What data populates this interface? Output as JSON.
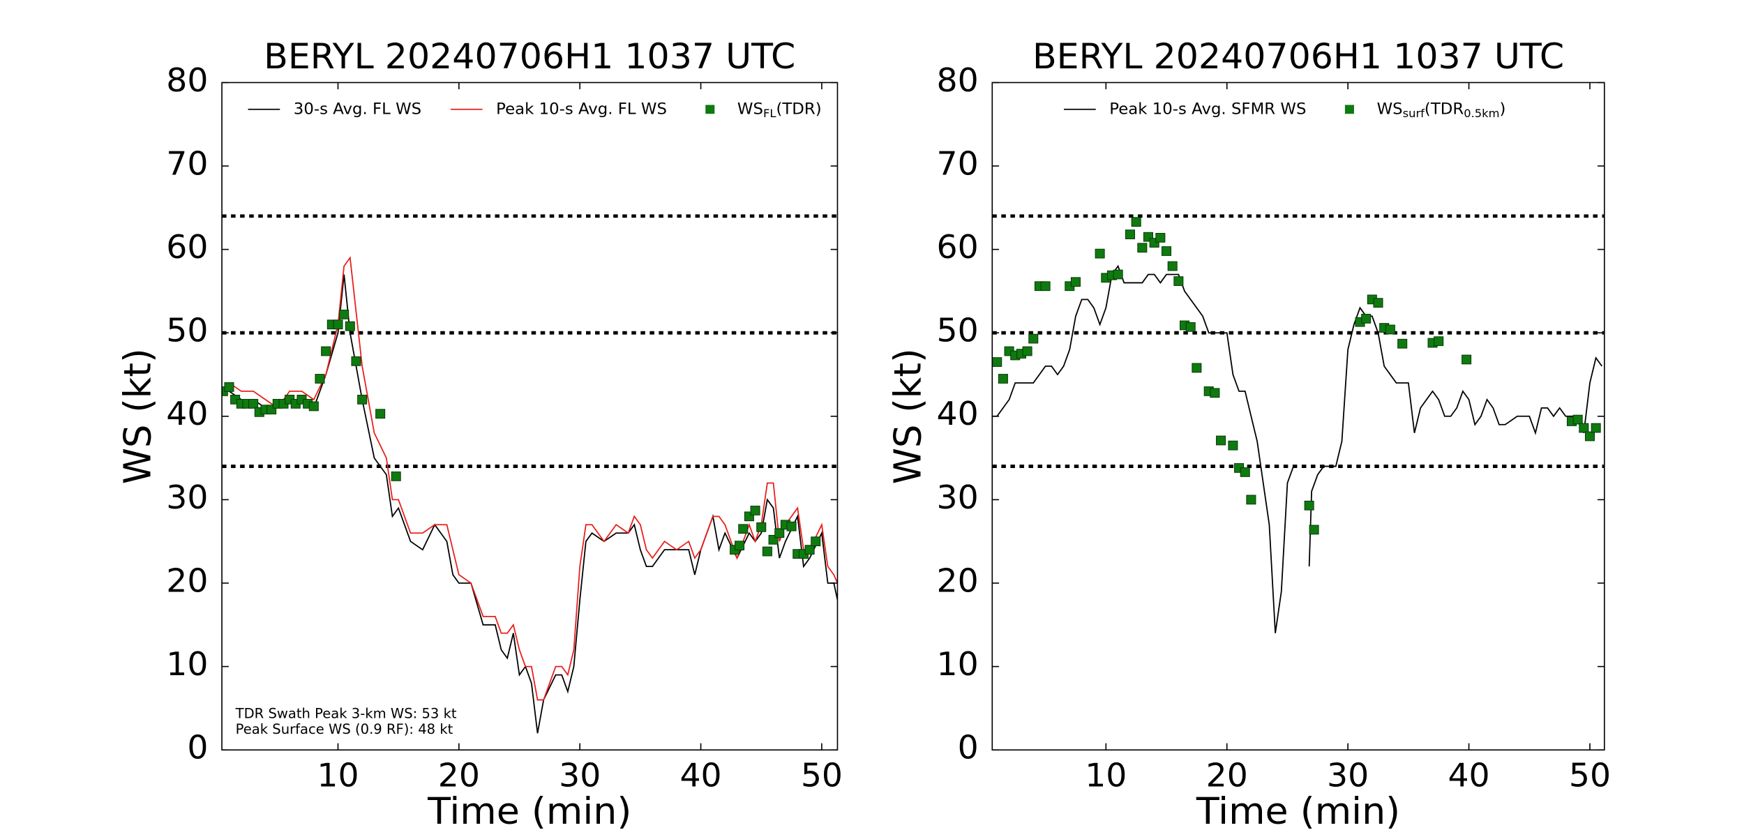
{
  "chart_data": [
    {
      "type": "line",
      "title": "BERYL 20240706H1 1037 UTC",
      "xlabel": "Time (min)",
      "ylabel": "WS (kt)",
      "xlim": [
        0.4,
        51.3
      ],
      "ylim": [
        0,
        80
      ],
      "xticks": [
        10,
        20,
        30,
        40,
        50
      ],
      "yticks": [
        0,
        10,
        20,
        30,
        40,
        50,
        60,
        70,
        80
      ],
      "hlines": [
        34,
        50,
        64
      ],
      "annotations": [
        "TDR Swath Peak 3-km WS: 53 kt",
        "Peak Surface WS (0.9 RF): 48 kt"
      ],
      "series": [
        {
          "name": [
            {
              "text": "30-s Avg. FL WS"
            }
          ],
          "style": "line",
          "color": "#000000",
          "x": [
            0.5,
            1,
            2,
            3,
            4,
            5,
            6,
            7,
            8,
            9,
            10,
            10.5,
            11,
            12,
            13,
            14,
            14.5,
            15,
            16,
            17,
            18,
            19,
            19.5,
            20,
            21,
            22,
            23,
            23.5,
            24,
            24.5,
            25,
            25.5,
            26,
            26.5,
            27,
            28,
            28.5,
            29,
            29.5,
            30,
            30.5,
            31,
            32,
            33,
            34,
            34.5,
            35,
            35.5,
            36,
            37,
            38,
            39,
            39.5,
            40,
            41,
            41.5,
            42,
            43,
            44,
            44.5,
            45,
            45.5,
            46,
            46.5,
            47,
            48,
            48.5,
            49,
            50,
            50.5,
            51,
            51.3
          ],
          "values": [
            43,
            43,
            42,
            42,
            41,
            41,
            42,
            42,
            41,
            45,
            50,
            57,
            50,
            42,
            35,
            33,
            28,
            29,
            25,
            24,
            27,
            25,
            21,
            20,
            20,
            15,
            15,
            12,
            11,
            14,
            9,
            10,
            8,
            2,
            6,
            9,
            9,
            7,
            10,
            18,
            25,
            26,
            25,
            26,
            26,
            27,
            24,
            22,
            22,
            24,
            24,
            24,
            21,
            24,
            28,
            24,
            26,
            23,
            26,
            25,
            26,
            30,
            29,
            23,
            25,
            28,
            22,
            23,
            26,
            20,
            20,
            18
          ]
        },
        {
          "name": [
            {
              "text": "Peak 10-s Avg. FL WS"
            }
          ],
          "style": "line",
          "color": "#e8201c",
          "x": [
            0.5,
            1,
            2,
            3,
            4,
            5,
            6,
            7,
            8,
            9,
            10,
            10.5,
            11,
            12,
            13,
            14,
            14.5,
            15,
            16,
            17,
            18,
            19,
            19.5,
            20,
            21,
            22,
            23,
            23.5,
            24,
            24.5,
            25,
            25.5,
            26,
            26.5,
            27,
            28,
            28.5,
            29,
            29.5,
            30,
            30.5,
            31,
            32,
            33,
            34,
            34.5,
            35,
            35.5,
            36,
            37,
            38,
            39,
            39.5,
            40,
            41,
            41.5,
            42,
            43,
            44,
            44.5,
            45,
            45.5,
            46,
            46.5,
            47,
            48,
            48.5,
            49,
            50,
            50.5,
            51,
            51.3
          ],
          "values": [
            43,
            44,
            43,
            43,
            42,
            41,
            43,
            43,
            42,
            45,
            51,
            58,
            59,
            46,
            38,
            35,
            30,
            30,
            26,
            26,
            27,
            27,
            24,
            21,
            20,
            16,
            16,
            14,
            14,
            15,
            12,
            10,
            10,
            6,
            6,
            10,
            10,
            9,
            12,
            22,
            27,
            27,
            25,
            27,
            26,
            28,
            27,
            24,
            23,
            25,
            24,
            25,
            23,
            24,
            28,
            28,
            27,
            23,
            27,
            25,
            27,
            32,
            32,
            25,
            27,
            29,
            24,
            24,
            27,
            22,
            21,
            20
          ]
        },
        {
          "name": [
            {
              "text": "WS"
            },
            {
              "text": "FL",
              "sub": true
            },
            {
              "text": "(TDR)"
            }
          ],
          "style": "markers",
          "color": "#0f7a0f",
          "x": [
            0.5,
            1,
            1.5,
            2,
            2.5,
            3,
            3.5,
            4,
            4.5,
            5,
            5.5,
            6,
            6.5,
            7,
            7.5,
            8,
            8.5,
            9,
            9.5,
            10,
            10.5,
            11,
            11.5,
            12,
            13.5,
            14.8,
            42.8,
            43.2,
            43.5,
            44,
            44.5,
            45,
            45.5,
            46,
            46.5,
            47,
            47.5,
            48,
            48.5,
            49,
            49.5
          ],
          "values": [
            43,
            43.5,
            42,
            41.5,
            41.5,
            41.5,
            40.5,
            40.8,
            40.8,
            41.5,
            41.5,
            42,
            41.5,
            42,
            41.5,
            41.2,
            44.5,
            47.8,
            51,
            51,
            52.2,
            50.8,
            46.6,
            42,
            40.3,
            32.8,
            24,
            24.5,
            26.5,
            28,
            28.7,
            26.7,
            23.8,
            25.2,
            26,
            27,
            26.8,
            23.5,
            23.5,
            24,
            25
          ]
        }
      ]
    },
    {
      "type": "line",
      "title": "BERYL 20240706H1 1037 UTC",
      "xlabel": "Time (min)",
      "ylabel": "WS (kt)",
      "xlim": [
        0.6,
        51.2
      ],
      "ylim": [
        0,
        80
      ],
      "xticks": [
        10,
        20,
        30,
        40,
        50
      ],
      "yticks": [
        0,
        10,
        20,
        30,
        40,
        50,
        60,
        70,
        80
      ],
      "hlines": [
        34,
        50,
        64
      ],
      "series": [
        {
          "name": [
            {
              "text": "Peak 10-s Avg. SFMR WS"
            }
          ],
          "style": "line",
          "color": "#000000",
          "x": [
            0.5,
            1,
            2,
            2.5,
            3,
            4,
            5,
            5.5,
            6,
            6.5,
            7,
            7.5,
            8,
            8.5,
            9,
            9.5,
            10,
            10.5,
            11,
            11.5,
            12,
            13,
            13.5,
            14,
            14.5,
            15,
            16,
            16.5,
            17,
            18,
            18.5,
            19,
            20,
            20.5,
            21,
            21.5,
            22,
            22.5,
            23,
            23.5,
            24,
            24.5,
            25,
            25.5,
            26,
            26.8,
            27,
            27.5,
            28,
            29,
            29.5,
            30,
            30.5,
            31,
            31.5,
            32,
            32.5,
            33,
            34,
            35,
            35.5,
            36,
            37,
            37.5,
            38,
            38.5,
            39,
            39.5,
            40,
            40.5,
            41,
            41.5,
            42,
            42.5,
            43,
            44,
            45,
            45.5,
            46,
            46.5,
            47,
            47.5,
            48,
            49,
            49.5,
            50,
            50.5,
            51
          ],
          "values": [
            40,
            40,
            42,
            44,
            44,
            44,
            46,
            46,
            45,
            46,
            48,
            52,
            54,
            54,
            53,
            51,
            53,
            57,
            58,
            56,
            56,
            56,
            57,
            57,
            56,
            57,
            57,
            55,
            54,
            52,
            50,
            50,
            50,
            45,
            43,
            43,
            40,
            37,
            32,
            27,
            14,
            19,
            32,
            34,
            null,
            22,
            31,
            33,
            34,
            34,
            37,
            48,
            51,
            53,
            52,
            52,
            50,
            46,
            44,
            44,
            38,
            41,
            43,
            42,
            40,
            40,
            41,
            43,
            42,
            39,
            40,
            42,
            41,
            39,
            39,
            40,
            40,
            38,
            41,
            41,
            40,
            41,
            40,
            40,
            38,
            44,
            47,
            46
          ]
        },
        {
          "name": [
            {
              "text": "WS"
            },
            {
              "text": "surf",
              "sub": true
            },
            {
              "text": "(TDR"
            },
            {
              "text": "0.5km",
              "sub": true
            },
            {
              "text": ")"
            }
          ],
          "style": "markers",
          "color": "#0f7a0f",
          "x": [
            1,
            1.5,
            2,
            2.5,
            3,
            3.5,
            4,
            4.5,
            5,
            7,
            7.5,
            9.5,
            10,
            10.5,
            11,
            12,
            12.5,
            13,
            13.5,
            14,
            14.5,
            15,
            15.5,
            16,
            16.5,
            17,
            17.5,
            18.5,
            19,
            19.5,
            20.5,
            21,
            21.5,
            22,
            26.8,
            27.2,
            31,
            31.5,
            32,
            32.5,
            33,
            33.5,
            34.5,
            37,
            37.5,
            39.8,
            48.5,
            49,
            49.5,
            50,
            50.5
          ],
          "values": [
            46.5,
            44.5,
            47.8,
            47.3,
            47.5,
            47.8,
            49.3,
            55.6,
            55.6,
            55.6,
            56.1,
            59.5,
            56.6,
            56.9,
            57,
            61.8,
            63.3,
            60.2,
            61.5,
            60.8,
            61.4,
            59.8,
            58,
            56.2,
            50.9,
            50.7,
            45.8,
            43,
            42.8,
            37.1,
            36.5,
            33.8,
            33.3,
            30,
            29.3,
            26.4,
            51.3,
            51.7,
            54,
            53.6,
            50.6,
            50.4,
            48.7,
            48.8,
            49,
            46.8,
            39.4,
            39.6,
            38.6,
            37.6,
            38.6
          ]
        }
      ]
    }
  ]
}
